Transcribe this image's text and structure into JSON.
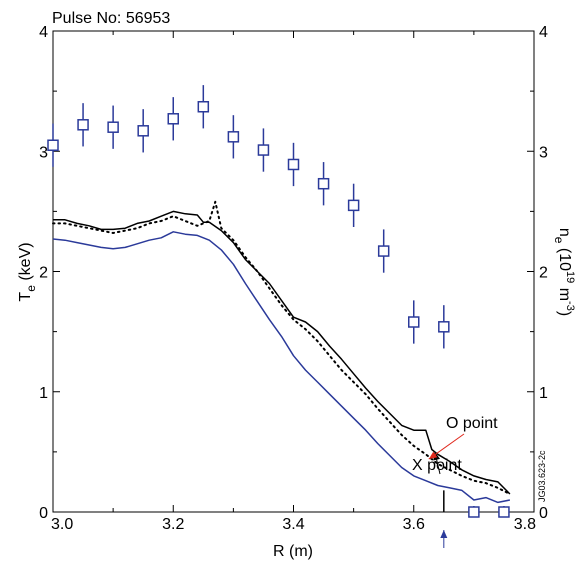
{
  "pulse_label": "Pulse No: 56953",
  "image_code": "JG03.623-2c",
  "chart_data": {
    "type": "line",
    "xlabel": "R (m)",
    "ylabel_left": {
      "base": "T",
      "sub": "e",
      "rest": " (keV)"
    },
    "ylabel_right": {
      "base": "n",
      "sub": "e",
      "mid": " (10",
      "sup": "19",
      "rest": " m",
      "sup2": "-3",
      "end": ")"
    },
    "xlim": [
      3.0,
      3.8
    ],
    "ylim": [
      0,
      4
    ],
    "ylim_right": [
      0,
      4
    ],
    "x_ticks": [
      "3.0",
      "3.2",
      "3.4",
      "3.6",
      "3.8"
    ],
    "y_ticks": [
      "0",
      "1",
      "2",
      "3",
      "4"
    ],
    "y_ticks_right": [
      "0",
      "1",
      "2",
      "3",
      "4"
    ],
    "series": [
      {
        "color": "#000000",
        "style": "solid",
        "points": [
          [
            3.0,
            2.43
          ],
          [
            3.02,
            2.43
          ],
          [
            3.04,
            2.4
          ],
          [
            3.06,
            2.38
          ],
          [
            3.08,
            2.35
          ],
          [
            3.1,
            2.35
          ],
          [
            3.12,
            2.36
          ],
          [
            3.14,
            2.4
          ],
          [
            3.16,
            2.42
          ],
          [
            3.18,
            2.46
          ],
          [
            3.2,
            2.5
          ],
          [
            3.22,
            2.48
          ],
          [
            3.24,
            2.47
          ],
          [
            3.25,
            2.41
          ],
          [
            3.26,
            2.41
          ],
          [
            3.28,
            2.34
          ],
          [
            3.3,
            2.24
          ],
          [
            3.32,
            2.1
          ],
          [
            3.34,
            2.0
          ],
          [
            3.36,
            1.9
          ],
          [
            3.38,
            1.76
          ],
          [
            3.4,
            1.62
          ],
          [
            3.42,
            1.58
          ],
          [
            3.44,
            1.5
          ],
          [
            3.46,
            1.38
          ],
          [
            3.48,
            1.27
          ],
          [
            3.5,
            1.15
          ],
          [
            3.52,
            1.03
          ],
          [
            3.54,
            0.92
          ],
          [
            3.56,
            0.82
          ],
          [
            3.58,
            0.72
          ],
          [
            3.6,
            0.68
          ],
          [
            3.62,
            0.68
          ],
          [
            3.63,
            0.52
          ],
          [
            3.64,
            0.48
          ],
          [
            3.66,
            0.42
          ],
          [
            3.68,
            0.35
          ],
          [
            3.7,
            0.3
          ],
          [
            3.72,
            0.27
          ],
          [
            3.74,
            0.25
          ],
          [
            3.76,
            0.15
          ]
        ]
      },
      {
        "color": "#000000",
        "style": "dotted",
        "points": [
          [
            3.0,
            2.4
          ],
          [
            3.02,
            2.4
          ],
          [
            3.04,
            2.38
          ],
          [
            3.06,
            2.36
          ],
          [
            3.08,
            2.34
          ],
          [
            3.1,
            2.32
          ],
          [
            3.12,
            2.34
          ],
          [
            3.14,
            2.36
          ],
          [
            3.16,
            2.4
          ],
          [
            3.18,
            2.42
          ],
          [
            3.2,
            2.46
          ],
          [
            3.22,
            2.42
          ],
          [
            3.24,
            2.38
          ],
          [
            3.26,
            2.42
          ],
          [
            3.27,
            2.58
          ],
          [
            3.28,
            2.36
          ],
          [
            3.3,
            2.26
          ],
          [
            3.32,
            2.12
          ],
          [
            3.34,
            2.0
          ],
          [
            3.36,
            1.86
          ],
          [
            3.38,
            1.72
          ],
          [
            3.4,
            1.6
          ],
          [
            3.42,
            1.52
          ],
          [
            3.44,
            1.42
          ],
          [
            3.46,
            1.3
          ],
          [
            3.48,
            1.18
          ],
          [
            3.5,
            1.08
          ],
          [
            3.52,
            0.98
          ],
          [
            3.54,
            0.86
          ],
          [
            3.56,
            0.75
          ],
          [
            3.58,
            0.64
          ],
          [
            3.6,
            0.55
          ],
          [
            3.62,
            0.48
          ],
          [
            3.64,
            0.4
          ],
          [
            3.66,
            0.35
          ],
          [
            3.68,
            0.3
          ],
          [
            3.7,
            0.26
          ],
          [
            3.72,
            0.24
          ],
          [
            3.74,
            0.2
          ],
          [
            3.76,
            0.15
          ]
        ]
      },
      {
        "color": "#2b3a9a",
        "style": "solid",
        "points": [
          [
            3.0,
            2.27
          ],
          [
            3.02,
            2.26
          ],
          [
            3.04,
            2.24
          ],
          [
            3.06,
            2.22
          ],
          [
            3.08,
            2.2
          ],
          [
            3.1,
            2.19
          ],
          [
            3.12,
            2.2
          ],
          [
            3.14,
            2.23
          ],
          [
            3.16,
            2.26
          ],
          [
            3.18,
            2.28
          ],
          [
            3.2,
            2.33
          ],
          [
            3.22,
            2.31
          ],
          [
            3.24,
            2.3
          ],
          [
            3.26,
            2.26
          ],
          [
            3.28,
            2.18
          ],
          [
            3.3,
            2.06
          ],
          [
            3.32,
            1.9
          ],
          [
            3.34,
            1.75
          ],
          [
            3.36,
            1.6
          ],
          [
            3.38,
            1.46
          ],
          [
            3.4,
            1.3
          ],
          [
            3.42,
            1.18
          ],
          [
            3.44,
            1.08
          ],
          [
            3.46,
            0.98
          ],
          [
            3.48,
            0.88
          ],
          [
            3.5,
            0.78
          ],
          [
            3.52,
            0.68
          ],
          [
            3.54,
            0.57
          ],
          [
            3.56,
            0.47
          ],
          [
            3.58,
            0.37
          ],
          [
            3.6,
            0.3
          ],
          [
            3.62,
            0.26
          ],
          [
            3.64,
            0.22
          ],
          [
            3.66,
            0.2
          ],
          [
            3.68,
            0.18
          ],
          [
            3.7,
            0.1
          ],
          [
            3.72,
            0.12
          ],
          [
            3.74,
            0.08
          ],
          [
            3.76,
            0.1
          ]
        ]
      }
    ],
    "density_points": {
      "color": "#2b3a9a",
      "marker": "open-square",
      "points": [
        {
          "x": 3.0,
          "y": 3.05,
          "err": 0.18
        },
        {
          "x": 3.05,
          "y": 3.22,
          "err": 0.18
        },
        {
          "x": 3.1,
          "y": 3.2,
          "err": 0.18
        },
        {
          "x": 3.15,
          "y": 3.17,
          "err": 0.18
        },
        {
          "x": 3.2,
          "y": 3.27,
          "err": 0.18
        },
        {
          "x": 3.25,
          "y": 3.37,
          "err": 0.18
        },
        {
          "x": 3.3,
          "y": 3.12,
          "err": 0.18
        },
        {
          "x": 3.35,
          "y": 3.01,
          "err": 0.18
        },
        {
          "x": 3.4,
          "y": 2.89,
          "err": 0.18
        },
        {
          "x": 3.45,
          "y": 2.73,
          "err": 0.18
        },
        {
          "x": 3.5,
          "y": 2.55,
          "err": 0.18
        },
        {
          "x": 3.55,
          "y": 2.17,
          "err": 0.18
        },
        {
          "x": 3.6,
          "y": 1.58,
          "err": 0.18
        },
        {
          "x": 3.65,
          "y": 1.54,
          "err": 0.18
        },
        {
          "x": 3.7,
          "y": 0.0,
          "err": 0.05
        },
        {
          "x": 3.75,
          "y": 0.0,
          "err": 0.05
        }
      ]
    },
    "annotations": [
      {
        "label": "X point",
        "color": "#000000",
        "target": [
          3.635,
          0.5
        ]
      },
      {
        "label": "O point",
        "color": "#e0281c",
        "target": [
          3.625,
          0.44
        ]
      }
    ],
    "vertical_marker": {
      "x": 3.65,
      "y_top": 0.18,
      "color": "#000000"
    },
    "bottom_arrow": {
      "x": 3.65,
      "color": "#2b3a9a"
    }
  }
}
